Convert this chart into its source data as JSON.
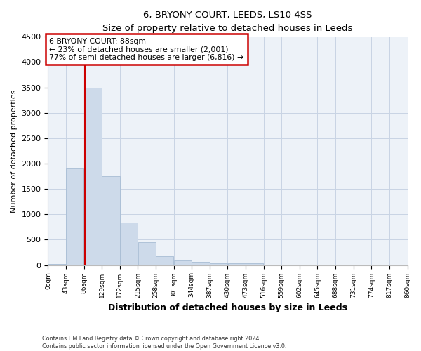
{
  "title_line1": "6, BRYONY COURT, LEEDS, LS10 4SS",
  "title_line2": "Size of property relative to detached houses in Leeds",
  "xlabel": "Distribution of detached houses by size in Leeds",
  "ylabel": "Number of detached properties",
  "bar_color": "#cddaea",
  "bar_edge_color": "#a8bdd4",
  "grid_color": "#c8d4e4",
  "plot_bg_color": "#edf2f8",
  "bins": [
    0,
    43,
    86,
    129,
    172,
    215,
    258,
    301,
    344,
    387,
    430,
    473,
    516,
    559,
    602,
    645,
    688,
    731,
    774,
    817,
    860
  ],
  "counts": [
    28,
    1900,
    3500,
    1750,
    835,
    450,
    175,
    90,
    60,
    40,
    35,
    35,
    0,
    0,
    0,
    0,
    0,
    0,
    0,
    0
  ],
  "property_size": 88,
  "vline_color": "#cc0000",
  "annotation_line1": "6 BRYONY COURT: 88sqm",
  "annotation_line2": "← 23% of detached houses are smaller (2,001)",
  "annotation_line3": "77% of semi-detached houses are larger (6,816) →",
  "annotation_box_color": "#cc0000",
  "ylim": [
    0,
    4500
  ],
  "yticks": [
    0,
    500,
    1000,
    1500,
    2000,
    2500,
    3000,
    3500,
    4000,
    4500
  ],
  "footnote1": "Contains HM Land Registry data © Crown copyright and database right 2024.",
  "footnote2": "Contains public sector information licensed under the Open Government Licence v3.0.",
  "tick_labels": [
    "0sqm",
    "43sqm",
    "86sqm",
    "129sqm",
    "172sqm",
    "215sqm",
    "258sqm",
    "301sqm",
    "344sqm",
    "387sqm",
    "430sqm",
    "473sqm",
    "516sqm",
    "559sqm",
    "602sqm",
    "645sqm",
    "688sqm",
    "731sqm",
    "774sqm",
    "817sqm",
    "860sqm"
  ]
}
